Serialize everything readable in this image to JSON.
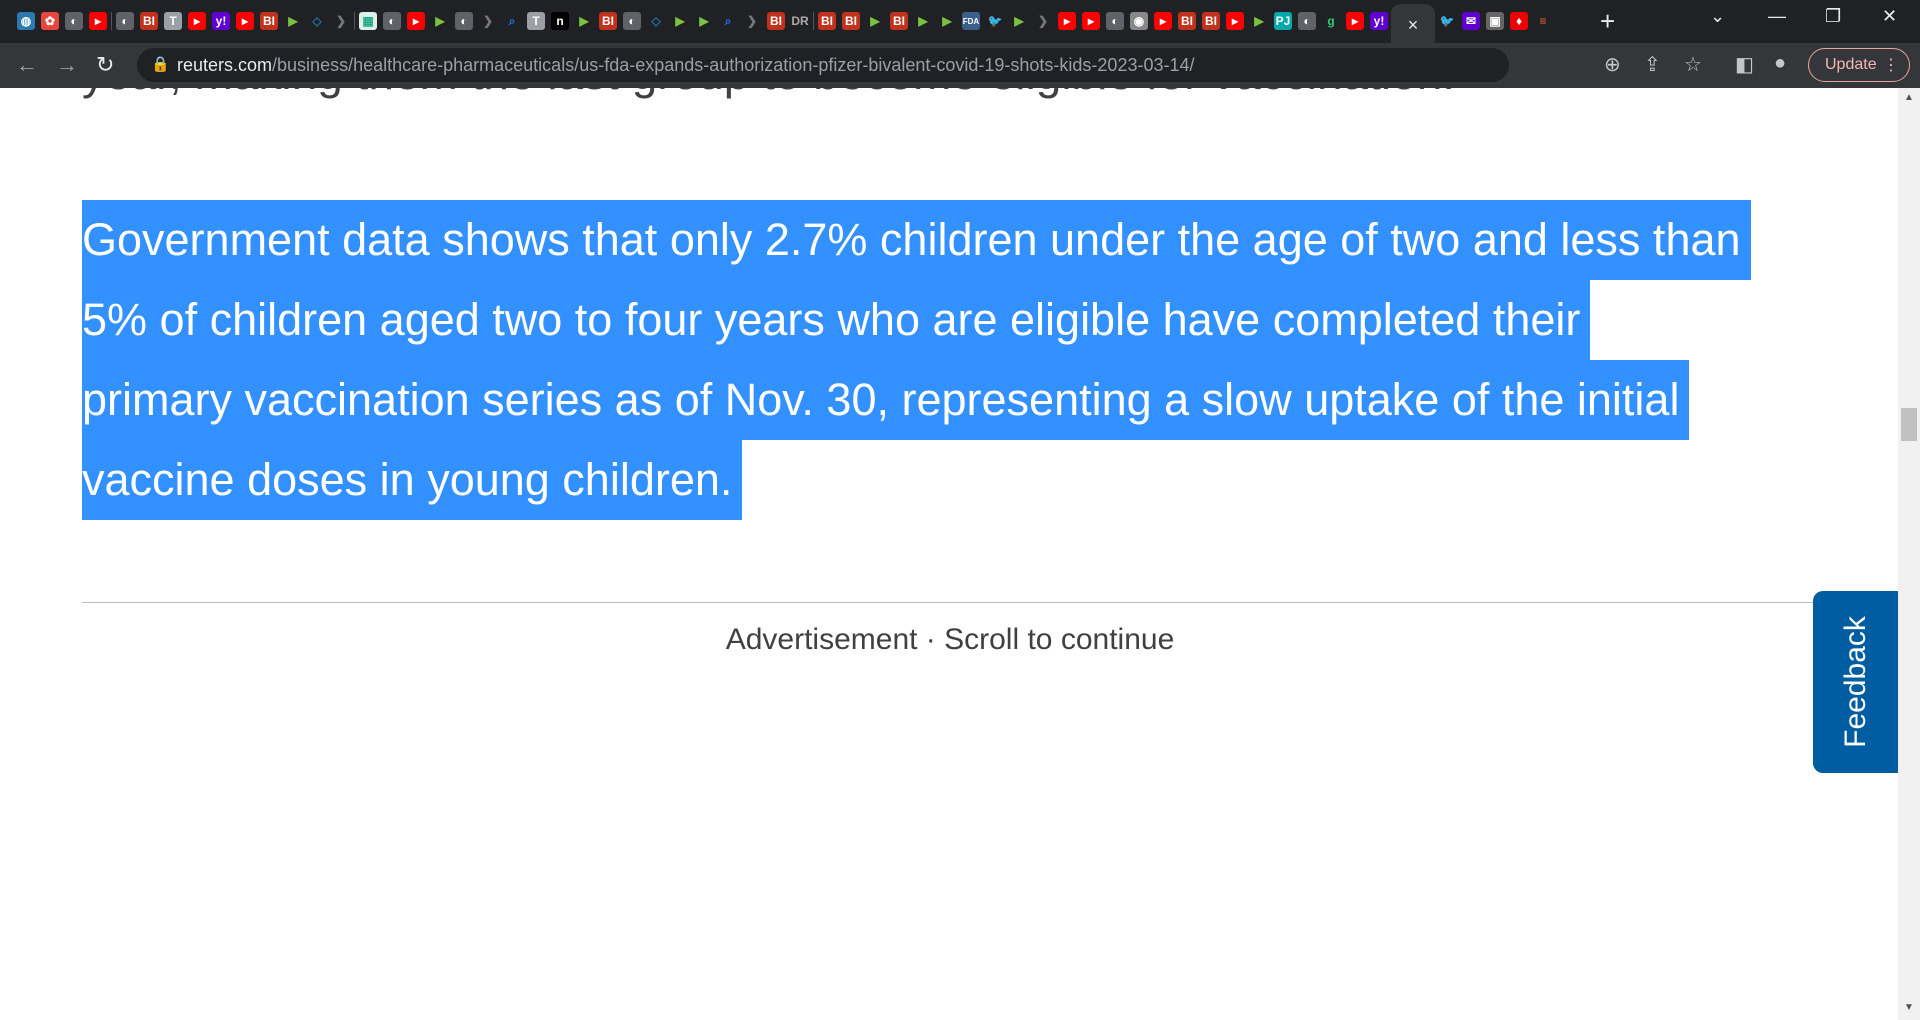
{
  "tabs": {
    "favicons": [
      "globe",
      "fan",
      "globe-gray",
      "youtube",
      "sep",
      "globe-gray",
      "bi",
      "t-circle",
      "youtube",
      "yahoo",
      "youtube",
      "bi",
      "play-green",
      "shield",
      "chevron-gray",
      "sep",
      "pattern",
      "globe-gray",
      "youtube",
      "play-green",
      "globe-gray",
      "chevron-gray",
      "search",
      "t-circle",
      "n-circle",
      "play-green",
      "bi",
      "globe-gray",
      "shield",
      "play-green",
      "play-green",
      "search",
      "chevron-gray",
      "bi",
      "dr",
      "sep",
      "bi",
      "bi",
      "play-green",
      "bi",
      "play-green",
      "play-green",
      "fda",
      "twitter",
      "play-green",
      "chevron-gray",
      "youtube",
      "youtube",
      "globe-gray",
      "seal",
      "youtube",
      "bi",
      "bi",
      "youtube",
      "play-green",
      "pj",
      "globe-gray",
      "g-green",
      "youtube",
      "yahoo"
    ],
    "after_active": [
      "twitter",
      "yahoo-mail",
      "photo",
      "torch",
      "bookmark"
    ],
    "active_close": "×",
    "new_tab": "+"
  },
  "toolbar": {
    "url_host": "reuters.com",
    "url_path": "/business/healthcare-pharmaceuticals/us-fda-expands-authorization-pfizer-bivalent-covid-19-shots-kids-2023-03-14/",
    "update_label": "Update"
  },
  "article": {
    "previous_line": "year, making them the last group to become eligible for vaccination.",
    "selected_lines": [
      "Government data shows that only 2.7% children under the age of two and less than",
      "5% of children aged two to four years who are eligible have completed their",
      "primary vaccination series as of Nov. 30, representing a slow uptake of the initial",
      "vaccine doses in young children."
    ],
    "ad_label": "Advertisement · Scroll to continue"
  },
  "feedback_label": "Feedback",
  "colors": {
    "selection": "#3390ff",
    "feedback": "#005da2"
  }
}
